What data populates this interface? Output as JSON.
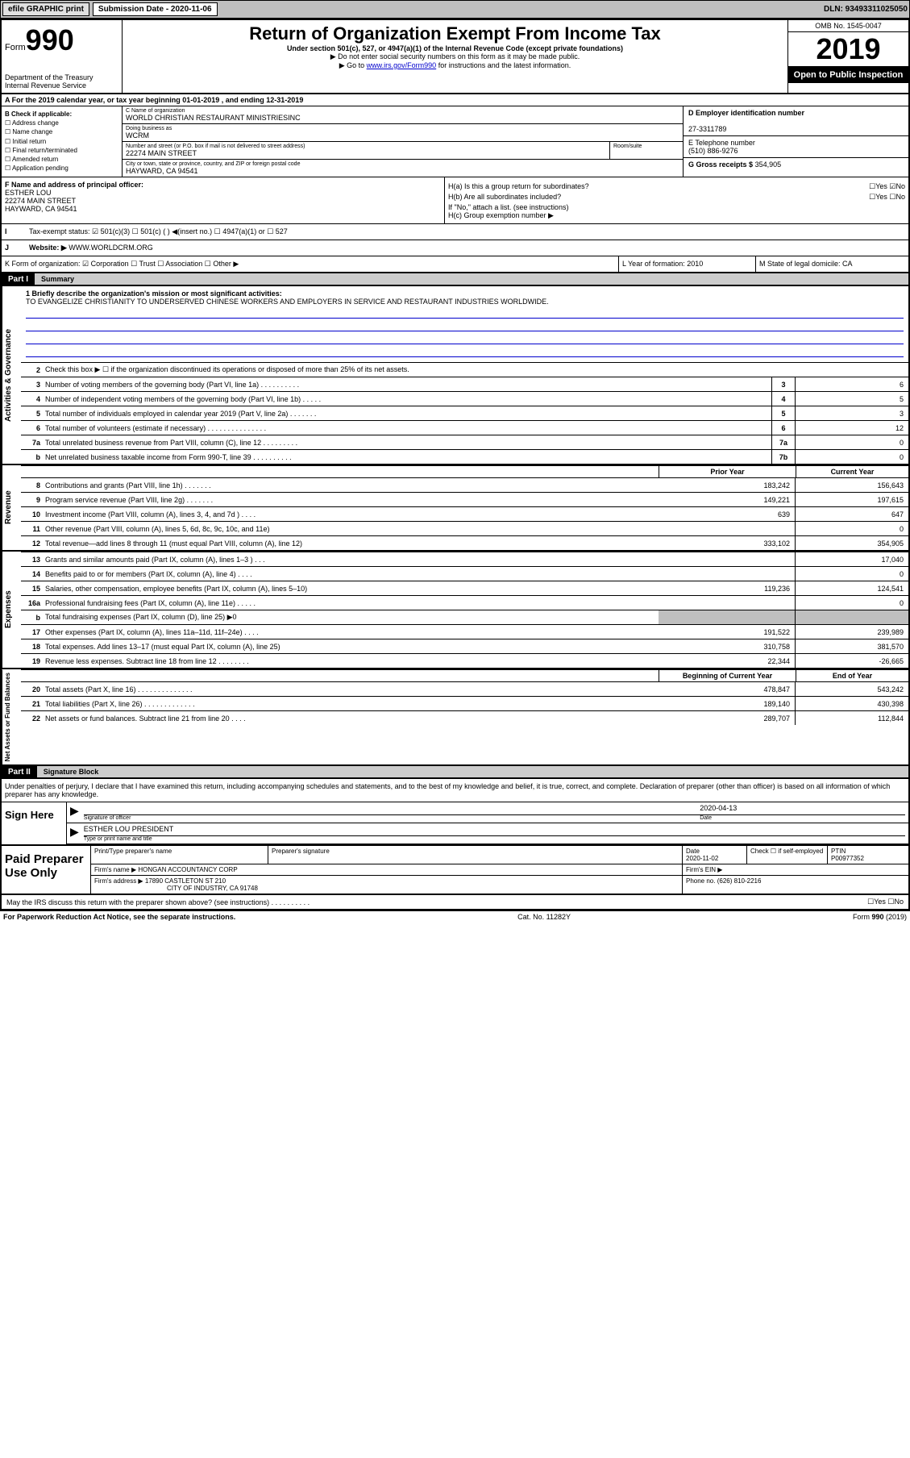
{
  "topbar": {
    "efile": "efile GRAPHIC print",
    "subdate_lbl": "Submission Date - 2020-11-06",
    "dln": "DLN: 93493311025050"
  },
  "hdr": {
    "form": "Form",
    "num": "990",
    "dept": "Department of the Treasury\nInternal Revenue Service",
    "title": "Return of Organization Exempt From Income Tax",
    "sub": "Under section 501(c), 527, or 4947(a)(1) of the Internal Revenue Code (except private foundations)",
    "arrow1": "▶ Do not enter social security numbers on this form as it may be made public.",
    "arrow2": "▶ Go to ",
    "link": "www.irs.gov/Form990",
    "arrow2b": " for instructions and the latest information.",
    "omb": "OMB No. 1545-0047",
    "year": "2019",
    "openpub": "Open to Public Inspection"
  },
  "rowA": "A For the 2019 calendar year, or tax year beginning 01-01-2019  , and ending 12-31-2019",
  "B": {
    "lbl": "B Check if applicable:",
    "items": [
      "Address change",
      "Name change",
      "Initial return",
      "Final return/terminated",
      "Amended return",
      "Application pending"
    ]
  },
  "C": {
    "name_lbl": "C Name of organization",
    "name": "WORLD CHRISTIAN RESTAURANT MINISTRIESINC",
    "dba_lbl": "Doing business as",
    "dba": "WCRM",
    "street_lbl": "Number and street (or P.O. box if mail is not delivered to street address)",
    "street": "22274 MAIN STREET",
    "room_lbl": "Room/suite",
    "city_lbl": "City or town, state or province, country, and ZIP or foreign postal code",
    "city": "HAYWARD, CA  94541"
  },
  "D": {
    "lbl": "D Employer identification number",
    "val": "27-3311789"
  },
  "E": {
    "lbl": "E Telephone number",
    "val": "(510) 886-9276"
  },
  "G": {
    "lbl": "G Gross receipts $",
    "val": "354,905"
  },
  "F": {
    "lbl": "F  Name and address of principal officer:",
    "name": "ESTHER LOU",
    "street": "22274 MAIN STREET",
    "city": "HAYWARD, CA  94541"
  },
  "H": {
    "a": "H(a)  Is this a group return for subordinates?",
    "a_yn": "☐Yes ☑No",
    "b": "H(b)  Are all subordinates included?",
    "b_yn": "☐Yes ☐No",
    "b_note": "If \"No,\" attach a list. (see instructions)",
    "c": "H(c)  Group exemption number ▶"
  },
  "I": {
    "lbl": "Tax-exempt status:",
    "opts": "☑ 501(c)(3)   ☐ 501(c) (  ) ◀(insert no.)   ☐ 4947(a)(1) or  ☐ 527"
  },
  "J": {
    "lbl": "Website: ▶",
    "val": "WWW.WORLDCRM.ORG"
  },
  "K": "K Form of organization:  ☑ Corporation ☐ Trust ☐ Association ☐ Other ▶",
  "L": "L Year of formation: 2010",
  "M": "M State of legal domicile: CA",
  "part1": {
    "hdr": "Part I",
    "title": "Summary"
  },
  "mission": {
    "lbl": "1  Briefly describe the organization's mission or most significant activities:",
    "text": "TO EVANGELIZE CHRISTIANITY TO UNDERSERVED CHINESE WORKERS AND EMPLOYERS IN SERVICE AND RESTAURANT INDUSTRIES WORLDWIDE."
  },
  "lines_gov": [
    {
      "n": "2",
      "d": "Check this box ▶ ☐  if the organization discontinued its operations or disposed of more than 25% of its net assets.",
      "box": "",
      "v": ""
    },
    {
      "n": "3",
      "d": "Number of voting members of the governing body (Part VI, line 1a)  .   .   .   .   .   .   .   .   .   .",
      "box": "3",
      "v": "6"
    },
    {
      "n": "4",
      "d": "Number of independent voting members of the governing body (Part VI, line 1b)  .   .   .   .   .",
      "box": "4",
      "v": "5"
    },
    {
      "n": "5",
      "d": "Total number of individuals employed in calendar year 2019 (Part V, line 2a) .   .   .   .   .   .   .",
      "box": "5",
      "v": "3"
    },
    {
      "n": "6",
      "d": "Total number of volunteers (estimate if necessary)   .   .   .   .   .   .   .   .   .   .   .   .   .   .   .",
      "box": "6",
      "v": "12"
    },
    {
      "n": "7a",
      "d": "Total unrelated business revenue from Part VIII, column (C), line 12  .   .   .   .   .   .   .   .   .",
      "box": "7a",
      "v": "0"
    },
    {
      "n": "b",
      "d": "Net unrelated business taxable income from Form 990-T, line 39   .   .   .   .   .   .   .   .   .   .",
      "box": "7b",
      "v": "0"
    }
  ],
  "pyhdr": {
    "h1": "Prior Year",
    "h2": "Current Year"
  },
  "lines_rev": [
    {
      "n": "8",
      "d": "Contributions and grants (Part VIII, line 1h)   .   .   .   .   .   .   .",
      "v1": "183,242",
      "v2": "156,643"
    },
    {
      "n": "9",
      "d": "Program service revenue (Part VIII, line 2g)   .   .   .   .   .   .   .",
      "v1": "149,221",
      "v2": "197,615"
    },
    {
      "n": "10",
      "d": "Investment income (Part VIII, column (A), lines 3, 4, and 7d )   .   .   .   .",
      "v1": "639",
      "v2": "647"
    },
    {
      "n": "11",
      "d": "Other revenue (Part VIII, column (A), lines 5, 6d, 8c, 9c, 10c, and 11e)",
      "v1": "",
      "v2": "0"
    },
    {
      "n": "12",
      "d": "Total revenue—add lines 8 through 11 (must equal Part VIII, column (A), line 12)",
      "v1": "333,102",
      "v2": "354,905"
    }
  ],
  "lines_exp": [
    {
      "n": "13",
      "d": "Grants and similar amounts paid (Part IX, column (A), lines 1–3 )  .   .   .",
      "v1": "",
      "v2": "17,040"
    },
    {
      "n": "14",
      "d": "Benefits paid to or for members (Part IX, column (A), line 4)  .   .   .   .",
      "v1": "",
      "v2": "0"
    },
    {
      "n": "15",
      "d": "Salaries, other compensation, employee benefits (Part IX, column (A), lines 5–10)",
      "v1": "119,236",
      "v2": "124,541"
    },
    {
      "n": "16a",
      "d": "Professional fundraising fees (Part IX, column (A), line 11e)  .   .   .   .   .",
      "v1": "",
      "v2": "0"
    },
    {
      "n": "b",
      "d": "Total fundraising expenses (Part IX, column (D), line 25) ▶0",
      "v1": "SHADE",
      "v2": "SHADE"
    },
    {
      "n": "17",
      "d": "Other expenses (Part IX, column (A), lines 11a–11d, 11f–24e)  .   .   .   .",
      "v1": "191,522",
      "v2": "239,989"
    },
    {
      "n": "18",
      "d": "Total expenses. Add lines 13–17 (must equal Part IX, column (A), line 25)",
      "v1": "310,758",
      "v2": "381,570"
    },
    {
      "n": "19",
      "d": "Revenue less expenses. Subtract line 18 from line 12 .   .   .   .   .   .   .   .",
      "v1": "22,344",
      "v2": "-26,665"
    }
  ],
  "nahdr": {
    "h1": "Beginning of Current Year",
    "h2": "End of Year"
  },
  "lines_na": [
    {
      "n": "20",
      "d": "Total assets (Part X, line 16)  .   .   .   .   .   .   .   .   .   .   .   .   .   .",
      "v1": "478,847",
      "v2": "543,242"
    },
    {
      "n": "21",
      "d": "Total liabilities (Part X, line 26)  .   .   .   .   .   .   .   .   .   .   .   .   .",
      "v1": "189,140",
      "v2": "430,398"
    },
    {
      "n": "22",
      "d": "Net assets or fund balances. Subtract line 21 from line 20  .   .   .   .",
      "v1": "289,707",
      "v2": "112,844"
    }
  ],
  "part2": {
    "hdr": "Part II",
    "title": "Signature Block"
  },
  "sig": {
    "decl": "Under penalties of perjury, I declare that I have examined this return, including accompanying schedules and statements, and to the best of my knowledge and belief, it is true, correct, and complete. Declaration of preparer (other than officer) is based on all information of which preparer has any knowledge.",
    "sign_here": "Sign Here",
    "sig_lbl": "Signature of officer",
    "date_lbl": "Date",
    "date": "2020-04-13",
    "name": "ESTHER LOU PRESIDENT",
    "name_lbl": "Type or print name and title"
  },
  "prep": {
    "lbl": "Paid Preparer Use Only",
    "h_name": "Print/Type preparer's name",
    "h_sig": "Preparer's signature",
    "h_date": "Date",
    "date": "2020-11-02",
    "h_chk": "Check ☐ if self-employed",
    "h_ptin": "PTIN",
    "ptin": "P00977352",
    "firm_lbl": "Firm's name   ▶",
    "firm": "HONGAN ACCOUNTANCY CORP",
    "ein_lbl": "Firm's EIN ▶",
    "addr_lbl": "Firm's address ▶",
    "addr1": "17890 CASTLETON ST 210",
    "addr2": "CITY OF INDUSTRY, CA  91748",
    "phone_lbl": "Phone no.",
    "phone": "(626) 810-2216"
  },
  "discuss": "May the IRS discuss this return with the preparer shown above? (see instructions)   .   .   .   .   .   .   .   .   .   .",
  "discuss_yn": "☐Yes  ☐No",
  "footer": {
    "l": "For Paperwork Reduction Act Notice, see the separate instructions.",
    "m": "Cat. No. 11282Y",
    "r": "Form 990 (2019)"
  },
  "vtabs": {
    "gov": "Activities & Governance",
    "rev": "Revenue",
    "exp": "Expenses",
    "na": "Net Assets or Fund Balances"
  }
}
